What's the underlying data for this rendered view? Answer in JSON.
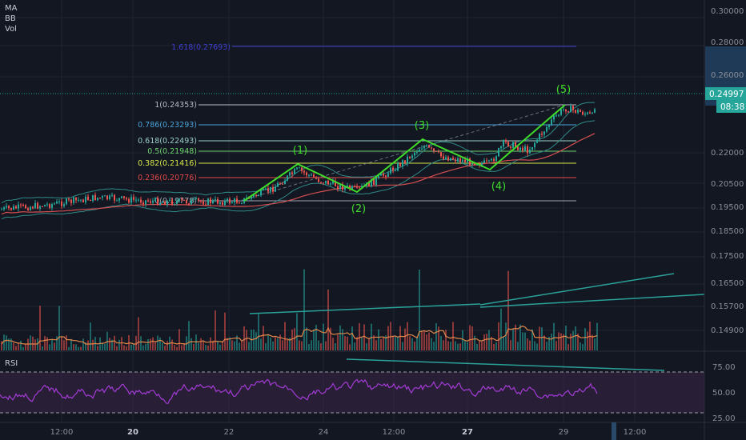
{
  "indicators": {
    "ma": "MA",
    "bb": "BB",
    "vol": "Vol",
    "rsi": "RSI"
  },
  "price_axis": {
    "ticks": [
      "0.30000",
      "0.28000",
      "0.26000",
      "0.22000",
      "0.20500",
      "0.19500",
      "0.18500",
      "0.17500",
      "0.16500",
      "0.15700",
      "0.14900"
    ],
    "last_price": "0.24997",
    "countdown": "08:38"
  },
  "rsi_axis": {
    "ticks": [
      "75.00",
      "50.00",
      "25.00"
    ]
  },
  "time_axis": {
    "labels": [
      "12:00",
      "20",
      "22",
      "24",
      "12:00",
      "27",
      "29",
      "12:00"
    ]
  },
  "fib_levels": [
    {
      "label": "1.618(0.27693)",
      "color": "#3f3fd0"
    },
    {
      "label": "1(0.24353)",
      "color": "#b8bcc6"
    },
    {
      "label": "0.786(0.23293)",
      "color": "#4aa3d9"
    },
    {
      "label": "0.618(0.22493)",
      "color": "#9ad0c4"
    },
    {
      "label": "0.5(0.21948)",
      "color": "#6fd36f"
    },
    {
      "label": "0.382(0.21416)",
      "color": "#d6e64a"
    },
    {
      "label": "0.236(0.20776)",
      "color": "#e04848"
    },
    {
      "label": "0(0.19778)",
      "color": "#9fa3ad"
    }
  ],
  "waves": [
    "(1)",
    "(2)",
    "(3)",
    "(4)",
    "(5)"
  ],
  "colors": {
    "background": "#131722",
    "wave": "#3fdc2a",
    "last_price": "#26a69a",
    "rsi": "#a43bd6",
    "volume_ma": "#e0874a"
  }
}
